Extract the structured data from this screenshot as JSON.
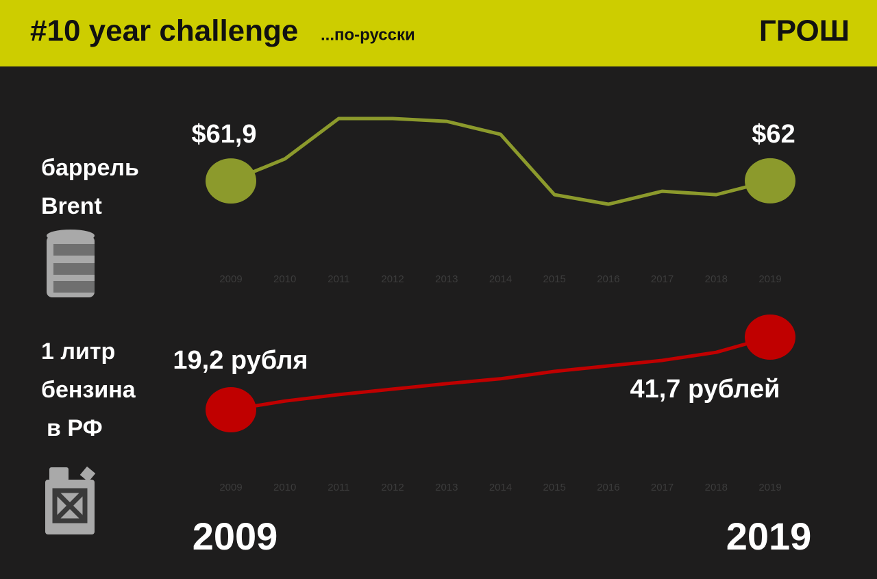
{
  "header": {
    "title": "#10 year challenge",
    "subtitle": "...по-русски",
    "logo": "ГРОШ"
  },
  "side_labels": [
    [
      "баррель",
      "Brent"
    ],
    [
      "1 литр",
      "бензина",
      "в РФ"
    ]
  ],
  "chart_data": [
    {
      "type": "line",
      "categories": [
        "2009",
        "2010",
        "2011",
        "2012",
        "2013",
        "2014",
        "2015",
        "2016",
        "2017",
        "2018",
        "2019"
      ],
      "values": [
        61.9,
        79.2,
        111,
        111,
        108.8,
        98.6,
        51.1,
        43.6,
        53.8,
        51.1,
        62
      ],
      "value_labels": [
        "$61,9",
        null,
        null,
        null,
        null,
        null,
        null,
        null,
        null,
        null,
        "$62"
      ],
      "color": "#8c9a2c",
      "ylim": [
        40,
        115
      ]
    },
    {
      "type": "line",
      "categories": [
        "2009",
        "2010",
        "2011",
        "2012",
        "2013",
        "2014",
        "2015",
        "2016",
        "2017",
        "2018",
        "2019"
      ],
      "values": [
        19.2,
        21.9,
        23.9,
        25.6,
        27.3,
        28.8,
        31.1,
        32.8,
        34.5,
        37.0,
        41.7
      ],
      "value_labels": [
        "19,2 рубля",
        null,
        null,
        null,
        null,
        null,
        null,
        null,
        null,
        null,
        "41,7 рублей"
      ],
      "color": "#c00000",
      "ylim": [
        15,
        45
      ]
    }
  ],
  "footer": {
    "start": "2009",
    "end": "2019"
  }
}
